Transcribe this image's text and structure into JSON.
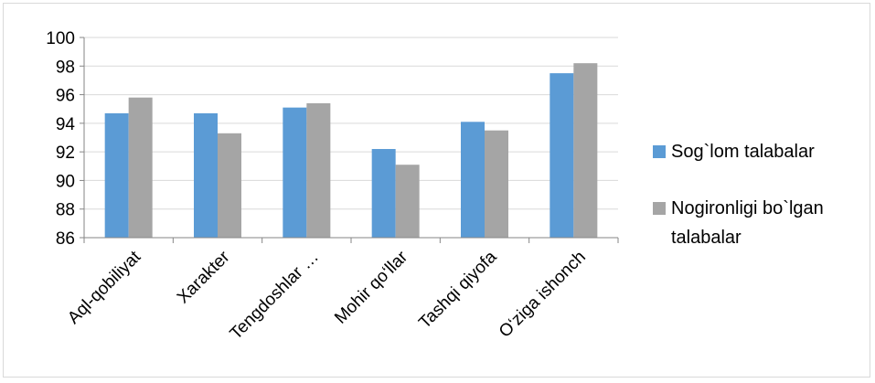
{
  "chart_data": {
    "type": "bar",
    "title": "",
    "xlabel": "",
    "ylabel": "",
    "categories": [
      "Aql-qobiliyat",
      "Xarakter",
      "Tengdoshlar …",
      "Mohir qo‘llar",
      "Tashqi qiyofa",
      "O‘ziga ishonch"
    ],
    "series": [
      {
        "name": "Sog`lom talabalar",
        "color": "#5b9bd5",
        "values": [
          94.7,
          94.7,
          95.1,
          92.2,
          94.1,
          97.5
        ]
      },
      {
        "name": "Nogironligi bo`lgan talabalar",
        "color": "#a5a5a5",
        "values": [
          95.8,
          93.3,
          95.4,
          91.1,
          93.5,
          98.2
        ]
      }
    ],
    "ylim": [
      86,
      100
    ],
    "yticks": [
      86,
      88,
      90,
      92,
      94,
      96,
      98,
      100
    ],
    "grid": true,
    "legend_position": "right"
  }
}
